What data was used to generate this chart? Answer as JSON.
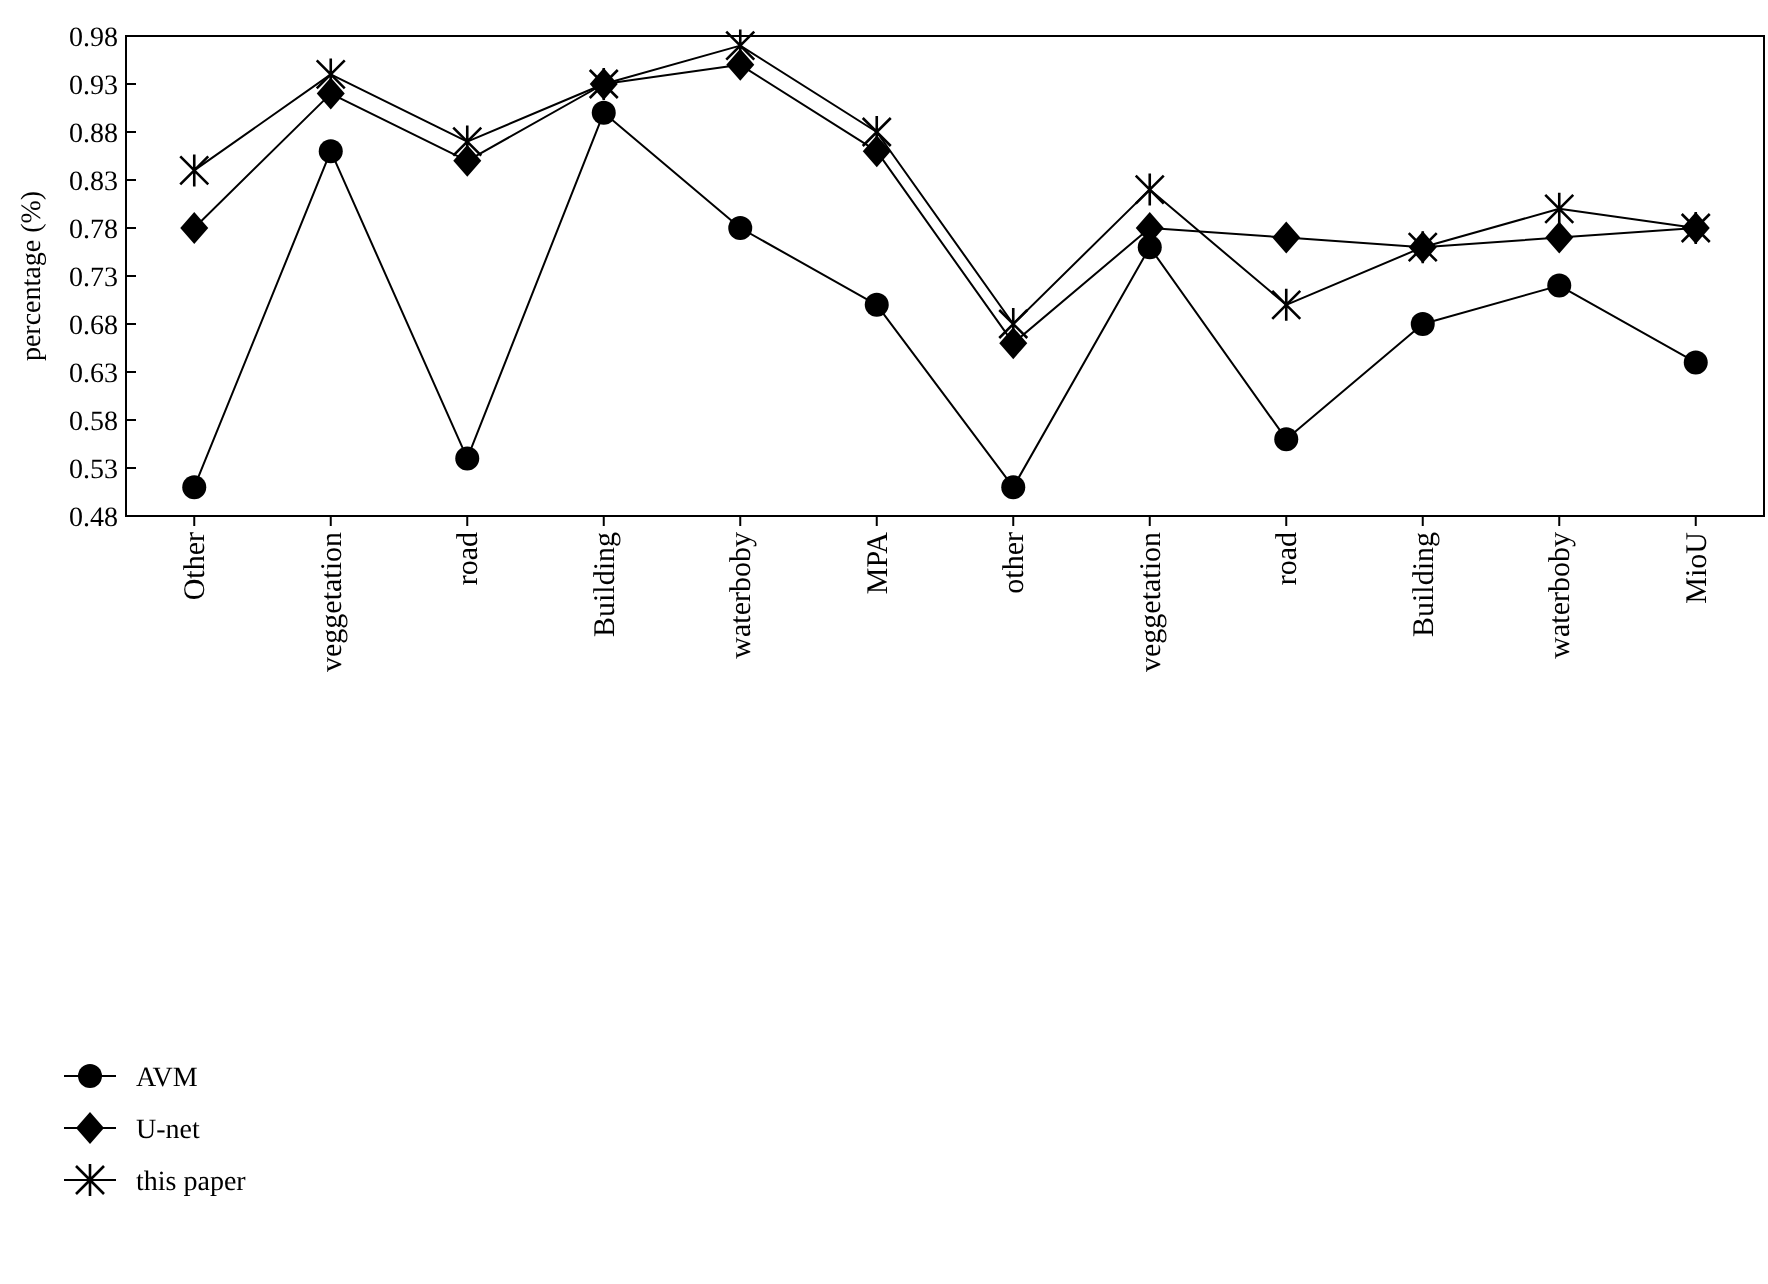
{
  "chart_data": {
    "type": "line",
    "ylabel": "percentage (%)",
    "categories": [
      "Other",
      "veggetation",
      "road",
      "Building",
      "waterboby",
      "MPA",
      "other",
      "veggetation",
      "road",
      "Building",
      "waterboby",
      "MioU"
    ],
    "series": [
      {
        "name": "AVM",
        "color": "#000000",
        "marker": "circle",
        "values": [
          0.51,
          0.86,
          0.54,
          0.9,
          0.78,
          0.7,
          0.51,
          0.76,
          0.56,
          0.68,
          0.72,
          0.64
        ]
      },
      {
        "name": "U-net",
        "color": "#000000",
        "marker": "diamond",
        "values": [
          0.78,
          0.92,
          0.85,
          0.93,
          0.95,
          0.86,
          0.66,
          0.78,
          0.77,
          0.76,
          0.77,
          0.78
        ]
      },
      {
        "name": "this paper",
        "color": "#000000",
        "marker": "cross",
        "values": [
          0.84,
          0.94,
          0.87,
          0.93,
          0.97,
          0.88,
          0.68,
          0.82,
          0.7,
          0.76,
          0.8,
          0.78
        ]
      }
    ],
    "ylim": [
      0.48,
      0.98
    ],
    "yticks": [
      0.48,
      0.53,
      0.58,
      0.63,
      0.68,
      0.73,
      0.78,
      0.83,
      0.88,
      0.93,
      0.98
    ],
    "grid": false,
    "legend": "bottom left",
    "line_style": "solid"
  }
}
